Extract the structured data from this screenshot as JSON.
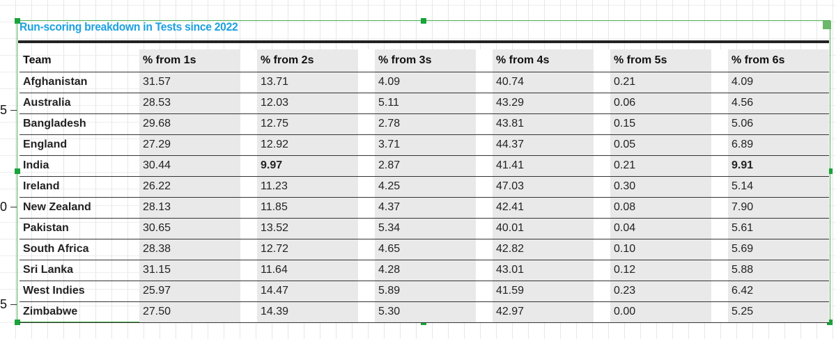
{
  "ruler": {
    "labels": [
      "5",
      "0",
      "5"
    ]
  },
  "table": {
    "title": "Run-scoring breakdown in Tests since 2022",
    "columns": [
      "Team",
      "% from 1s",
      "% from 2s",
      "% from 3s",
      "% from 4s",
      "% from 5s",
      "% from 6s"
    ],
    "rows": [
      {
        "team": "Afghanistan",
        "values": [
          "31.57",
          "13.71",
          "4.09",
          "40.74",
          "0.21",
          "4.09"
        ]
      },
      {
        "team": "Australia",
        "values": [
          "28.53",
          "12.03",
          "5.11",
          "43.29",
          "0.06",
          "4.56"
        ]
      },
      {
        "team": "Bangladesh",
        "values": [
          "29.68",
          "12.75",
          "2.78",
          "43.81",
          "0.15",
          "5.06"
        ]
      },
      {
        "team": "England",
        "values": [
          "27.29",
          "12.92",
          "3.71",
          "44.37",
          "0.05",
          "6.89"
        ]
      },
      {
        "team": "India",
        "values": [
          "30.44",
          "9.97",
          "2.87",
          "41.41",
          "0.21",
          "9.91"
        ]
      },
      {
        "team": "Ireland",
        "values": [
          "26.22",
          "11.23",
          "4.25",
          "47.03",
          "0.30",
          "5.14"
        ]
      },
      {
        "team": "New Zealand",
        "values": [
          "28.13",
          "11.85",
          "4.37",
          "42.41",
          "0.08",
          "7.90"
        ]
      },
      {
        "team": "Pakistan",
        "values": [
          "30.65",
          "13.52",
          "5.34",
          "40.01",
          "0.04",
          "5.61"
        ]
      },
      {
        "team": "South Africa",
        "values": [
          "28.38",
          "12.72",
          "4.65",
          "42.82",
          "0.10",
          "5.69"
        ]
      },
      {
        "team": "Sri Lanka",
        "values": [
          "31.15",
          "11.64",
          "4.28",
          "43.01",
          "0.12",
          "5.88"
        ]
      },
      {
        "team": "West Indies",
        "values": [
          "25.97",
          "14.47",
          "5.89",
          "41.59",
          "0.23",
          "6.42"
        ]
      },
      {
        "team": "Zimbabwe",
        "values": [
          "27.50",
          "14.39",
          "5.30",
          "42.97",
          "0.00",
          "5.25"
        ]
      }
    ],
    "bold_cells": [
      {
        "row": 4,
        "col": 1
      },
      {
        "row": 4,
        "col": 5
      }
    ]
  },
  "colors": {
    "accent": "#1da1e2",
    "shade": "#e9e9e9",
    "selection": "#1aa33a"
  }
}
